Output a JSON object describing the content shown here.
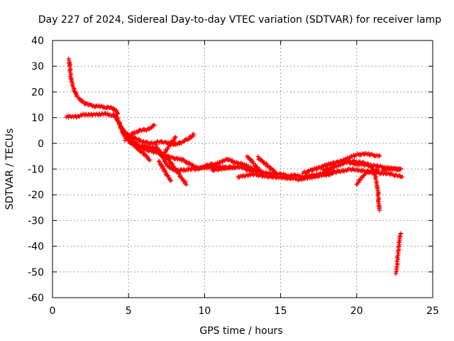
{
  "chart_data": {
    "type": "scatter",
    "title": "Day 227 of 2024, Sidereal Day-to-day VTEC variation (SDTVAR) for receiver lamp",
    "xlabel": "GPS time / hours",
    "ylabel": "SDTVAR / TECUs",
    "xlim": [
      0,
      25
    ],
    "ylim": [
      -60,
      40
    ],
    "xticks": [
      0,
      5,
      10,
      15,
      20,
      25
    ],
    "yticks": [
      -60,
      -50,
      -40,
      -30,
      -20,
      -10,
      0,
      10,
      20,
      30,
      40
    ],
    "grid": true,
    "marker": "+",
    "series": [
      {
        "name": "s1",
        "color": "#ff0000",
        "points": [
          [
            1.1,
            32.5
          ],
          [
            1.15,
            29
          ],
          [
            1.2,
            26
          ],
          [
            1.3,
            23
          ],
          [
            1.45,
            20.5
          ],
          [
            1.6,
            18.5
          ],
          [
            1.8,
            17
          ],
          [
            2.0,
            16
          ],
          [
            2.3,
            15.2
          ],
          [
            2.7,
            14.6
          ],
          [
            3.1,
            14.3
          ],
          [
            3.5,
            14.1
          ],
          [
            3.8,
            13.9
          ],
          [
            4.0,
            13.4
          ],
          [
            4.2,
            12.5
          ],
          [
            4.3,
            11.5
          ]
        ]
      },
      {
        "name": "s2",
        "color": "#ff0000",
        "points": [
          [
            0.9,
            10.3
          ],
          [
            1.2,
            10.5
          ],
          [
            1.5,
            10.2
          ],
          [
            1.8,
            10.8
          ],
          [
            2.1,
            11.3
          ],
          [
            2.4,
            11.0
          ],
          [
            2.7,
            11.4
          ],
          [
            3.0,
            11.2
          ],
          [
            3.3,
            11.5
          ],
          [
            3.6,
            11.3
          ],
          [
            3.9,
            11.0
          ],
          [
            4.2,
            10.5
          ]
        ]
      },
      {
        "name": "s3",
        "color": "#ff0000",
        "points": [
          [
            4.0,
            11.0
          ],
          [
            4.3,
            9.0
          ],
          [
            4.5,
            6.0
          ],
          [
            4.7,
            3.0
          ],
          [
            5.0,
            1.0
          ],
          [
            5.3,
            -0.5
          ],
          [
            5.7,
            -2.5
          ],
          [
            6.1,
            -4.5
          ],
          [
            6.4,
            -6.5
          ]
        ]
      },
      {
        "name": "s4",
        "color": "#ff0000",
        "points": [
          [
            4.2,
            10.5
          ],
          [
            4.5,
            6.5
          ],
          [
            4.8,
            4.0
          ],
          [
            5.2,
            2.5
          ],
          [
            5.6,
            1.5
          ],
          [
            6.0,
            0.5
          ],
          [
            6.5,
            0.0
          ],
          [
            7.0,
            0.5
          ],
          [
            7.5,
            0.5
          ],
          [
            8.0,
            -0.5
          ],
          [
            8.5,
            0.5
          ],
          [
            9.0,
            2.0
          ],
          [
            9.3,
            3.5
          ]
        ]
      },
      {
        "name": "s5",
        "color": "#ff0000",
        "points": [
          [
            5.0,
            2.5
          ],
          [
            5.3,
            1.0
          ],
          [
            5.7,
            -1.0
          ],
          [
            6.2,
            -2.5
          ],
          [
            6.8,
            -3.5
          ],
          [
            7.3,
            -4.5
          ],
          [
            7.8,
            -5.5
          ],
          [
            8.2,
            -6.0
          ],
          [
            8.6,
            -6.5
          ],
          [
            9.0,
            -8.0
          ],
          [
            9.5,
            -9.5
          ],
          [
            10.2,
            -9.5
          ],
          [
            11.0,
            -9.0
          ],
          [
            11.5,
            -9.5
          ],
          [
            12.0,
            -9.5
          ]
        ]
      },
      {
        "name": "s6",
        "color": "#ff0000",
        "points": [
          [
            4.8,
            1.5
          ],
          [
            5.3,
            4.0
          ],
          [
            5.8,
            5.0
          ],
          [
            6.3,
            5.5
          ],
          [
            6.7,
            7.0
          ]
        ]
      },
      {
        "name": "s7",
        "color": "#ff0000",
        "points": [
          [
            5.5,
            -1.5
          ],
          [
            6.0,
            -1.0
          ],
          [
            6.5,
            -1.5
          ],
          [
            7.0,
            -3.0
          ],
          [
            7.5,
            -5.5
          ],
          [
            7.9,
            -8.5
          ],
          [
            8.2,
            -11.0
          ],
          [
            8.5,
            -13.5
          ],
          [
            8.8,
            -16.0
          ]
        ]
      },
      {
        "name": "s8",
        "color": "#ff0000",
        "points": [
          [
            6.8,
            -1.0
          ],
          [
            7.2,
            -5.0
          ],
          [
            7.5,
            -8.0
          ],
          [
            7.8,
            -10.0
          ],
          [
            8.2,
            -10.5
          ],
          [
            8.6,
            -10.5
          ],
          [
            9.0,
            -10.0
          ],
          [
            9.5,
            -10.0
          ],
          [
            10.0,
            -9.0
          ],
          [
            10.5,
            -8.0
          ]
        ]
      },
      {
        "name": "s9",
        "color": "#ff0000",
        "points": [
          [
            7.0,
            -7.0
          ],
          [
            7.3,
            -10.0
          ],
          [
            7.6,
            -13.0
          ],
          [
            7.8,
            -14.5
          ]
        ]
      },
      {
        "name": "s10",
        "color": "#ff0000",
        "points": [
          [
            7.2,
            -5.0
          ],
          [
            7.5,
            -2.5
          ],
          [
            7.8,
            0.0
          ],
          [
            8.1,
            2.5
          ]
        ]
      },
      {
        "name": "s11",
        "color": "#ff0000",
        "points": [
          [
            10.0,
            -9.0
          ],
          [
            10.5,
            -8.5
          ],
          [
            11.0,
            -7.5
          ],
          [
            11.5,
            -6.0
          ],
          [
            12.0,
            -7.5
          ],
          [
            12.5,
            -8.0
          ],
          [
            13.0,
            -9.5
          ],
          [
            13.5,
            -10.5
          ]
        ]
      },
      {
        "name": "s12",
        "color": "#ff0000",
        "points": [
          [
            10.5,
            -10.5
          ],
          [
            11.0,
            -10.0
          ],
          [
            11.5,
            -9.5
          ],
          [
            12.0,
            -9.0
          ],
          [
            12.5,
            -9.5
          ],
          [
            13.0,
            -10.5
          ],
          [
            13.5,
            -11.0
          ],
          [
            14.0,
            -11.5
          ],
          [
            14.5,
            -12.0
          ],
          [
            15.0,
            -12.0
          ],
          [
            15.5,
            -12.5
          ],
          [
            16.0,
            -12.5
          ],
          [
            16.5,
            -13.0
          ],
          [
            17.0,
            -12.5
          ],
          [
            17.5,
            -12.0
          ],
          [
            18.0,
            -11.5
          ],
          [
            18.5,
            -10.5
          ]
        ]
      },
      {
        "name": "s13",
        "color": "#ff0000",
        "points": [
          [
            12.2,
            -13.0
          ],
          [
            12.7,
            -12.5
          ],
          [
            13.2,
            -12.0
          ],
          [
            13.7,
            -12.5
          ],
          [
            14.2,
            -13.0
          ],
          [
            14.7,
            -13.0
          ],
          [
            15.2,
            -13.5
          ],
          [
            15.7,
            -13.5
          ],
          [
            16.2,
            -14.0
          ],
          [
            16.7,
            -13.5
          ],
          [
            17.2,
            -13.0
          ],
          [
            17.7,
            -12.5
          ],
          [
            18.2,
            -12.0
          ],
          [
            18.7,
            -11.0
          ],
          [
            19.2,
            -10.5
          ],
          [
            19.7,
            -10.0
          ],
          [
            20.2,
            -10.5
          ],
          [
            20.7,
            -11.0
          ],
          [
            21.2,
            -11.5
          ],
          [
            21.7,
            -11.5
          ],
          [
            22.2,
            -12.0
          ],
          [
            22.7,
            -12.5
          ],
          [
            23.0,
            -13.0
          ]
        ]
      },
      {
        "name": "s14",
        "color": "#ff0000",
        "points": [
          [
            12.8,
            -5.0
          ],
          [
            13.1,
            -7.0
          ],
          [
            13.4,
            -9.0
          ],
          [
            13.7,
            -11.0
          ]
        ]
      },
      {
        "name": "s15",
        "color": "#ff0000",
        "points": [
          [
            13.5,
            -5.5
          ],
          [
            13.9,
            -7.5
          ],
          [
            14.3,
            -9.5
          ],
          [
            14.7,
            -11.5
          ]
        ]
      },
      {
        "name": "s16",
        "color": "#ff0000",
        "points": [
          [
            16.5,
            -11.5
          ],
          [
            17.0,
            -10.5
          ],
          [
            17.5,
            -9.5
          ],
          [
            18.0,
            -8.5
          ],
          [
            18.5,
            -7.5
          ],
          [
            19.0,
            -7.0
          ],
          [
            19.5,
            -5.5
          ],
          [
            20.0,
            -4.5
          ],
          [
            20.5,
            -4.0
          ],
          [
            21.0,
            -4.5
          ],
          [
            21.5,
            -5.0
          ]
        ]
      },
      {
        "name": "s17",
        "color": "#ff0000",
        "points": [
          [
            17.8,
            -10.5
          ],
          [
            18.3,
            -9.5
          ],
          [
            18.8,
            -8.5
          ],
          [
            19.3,
            -7.5
          ],
          [
            19.8,
            -7.0
          ],
          [
            20.3,
            -7.5
          ],
          [
            20.8,
            -8.0
          ],
          [
            21.0,
            -9.5
          ],
          [
            21.2,
            -12.0
          ],
          [
            21.3,
            -15.0
          ],
          [
            21.4,
            -19.0
          ],
          [
            21.45,
            -23.0
          ],
          [
            21.5,
            -26.0
          ]
        ]
      },
      {
        "name": "s18",
        "color": "#ff0000",
        "points": [
          [
            19.5,
            -7.5
          ],
          [
            20.0,
            -8.0
          ],
          [
            20.5,
            -8.5
          ],
          [
            21.0,
            -8.5
          ],
          [
            21.5,
            -9.0
          ],
          [
            22.0,
            -9.5
          ],
          [
            22.5,
            -10.0
          ],
          [
            22.9,
            -10.0
          ]
        ]
      },
      {
        "name": "s19",
        "color": "#ff0000",
        "points": [
          [
            20.0,
            -16.0
          ],
          [
            20.3,
            -13.5
          ],
          [
            20.6,
            -11.5
          ],
          [
            21.0,
            -10.5
          ],
          [
            21.4,
            -10.5
          ]
        ]
      },
      {
        "name": "s20",
        "color": "#ff0000",
        "points": [
          [
            21.7,
            -10.0
          ],
          [
            22.0,
            -10.2
          ],
          [
            22.3,
            -9.8
          ],
          [
            22.6,
            -10.2
          ],
          [
            22.9,
            -9.8
          ]
        ]
      },
      {
        "name": "s21",
        "color": "#ff0000",
        "points": [
          [
            22.6,
            -50.5
          ],
          [
            22.65,
            -47
          ],
          [
            22.7,
            -44
          ],
          [
            22.75,
            -41
          ],
          [
            22.8,
            -38.5
          ],
          [
            22.85,
            -36.5
          ],
          [
            22.9,
            -35
          ]
        ]
      }
    ]
  }
}
